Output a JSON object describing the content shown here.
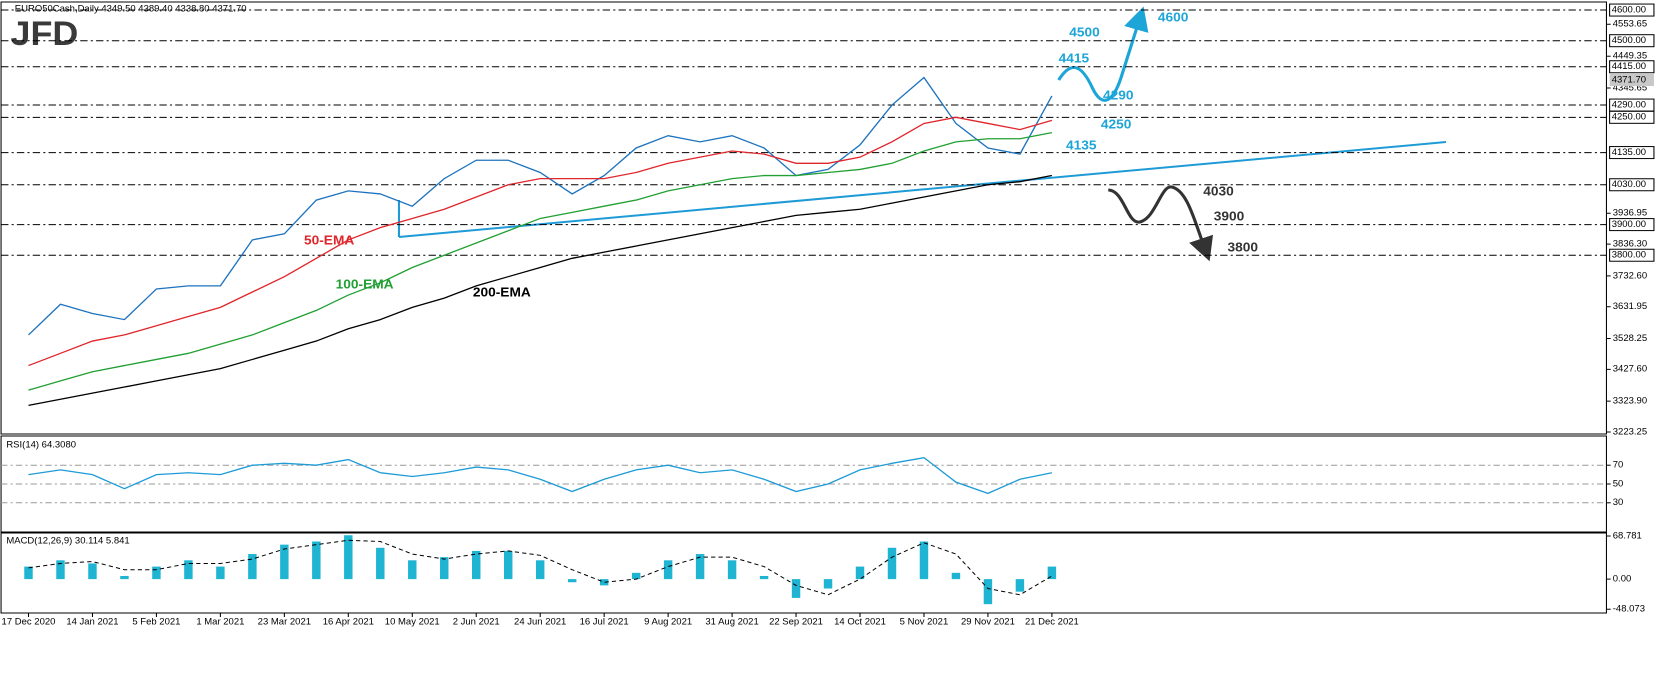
{
  "header": {
    "logo": "JFD"
  },
  "chart_data": [
    {
      "type": "line",
      "title": "EURO50Cash,Daily  4349.50 4389.40 4338.80 4371.70",
      "categories": [
        "17 Dec 2020",
        null,
        "14 Jan 2021",
        null,
        "5 Feb 2021",
        null,
        "1 Mar 2021",
        null,
        "23 Mar 2021",
        null,
        "16 Apr 2021",
        null,
        "10 May 2021",
        null,
        "2 Jun 2021",
        null,
        "24 Jun 2021",
        null,
        "16 Jul 2021",
        null,
        "9 Aug 2021",
        null,
        "31 Aug 2021",
        null,
        "22 Sep 2021",
        null,
        "14 Oct 2021",
        null,
        "5 Nov 2021",
        null,
        "29 Nov 2021",
        null,
        "21 Dec 2021"
      ],
      "series": [
        {
          "color": "#1e73be",
          "values": [
            3540,
            3640,
            3610,
            3590,
            3690,
            3700,
            3700,
            3850,
            3870,
            3980,
            4010,
            4000,
            3960,
            4050,
            4110,
            4110,
            4070,
            4000,
            4060,
            4150,
            4190,
            4170,
            4190,
            4150,
            4060,
            4080,
            4160,
            4290,
            4380,
            4230,
            4150,
            4130,
            4320
          ]
        },
        {
          "name": "50-EMA",
          "color": "#e0262b",
          "values": [
            3440,
            3480,
            3520,
            3540,
            3570,
            3600,
            3630,
            3680,
            3730,
            3790,
            3850,
            3890,
            3920,
            3950,
            3990,
            4030,
            4050,
            4050,
            4050,
            4070,
            4100,
            4120,
            4140,
            4130,
            4100,
            4100,
            4120,
            4170,
            4230,
            4250,
            4230,
            4210,
            4240
          ]
        },
        {
          "name": "100-EMA",
          "color": "#22a033",
          "values": [
            3360,
            3390,
            3420,
            3440,
            3460,
            3480,
            3510,
            3540,
            3580,
            3620,
            3670,
            3710,
            3760,
            3800,
            3840,
            3880,
            3920,
            3940,
            3960,
            3980,
            4010,
            4030,
            4050,
            4060,
            4060,
            4070,
            4080,
            4100,
            4140,
            4170,
            4180,
            4180,
            4200
          ]
        },
        {
          "name": "200-EMA",
          "color": "#000000",
          "values": [
            3310,
            3330,
            3350,
            3370,
            3390,
            3410,
            3430,
            3460,
            3490,
            3520,
            3560,
            3590,
            3630,
            3660,
            3700,
            3730,
            3760,
            3790,
            3810,
            3830,
            3850,
            3870,
            3890,
            3910,
            3930,
            3940,
            3950,
            3970,
            3990,
            4010,
            4030,
            4040,
            4060
          ]
        }
      ],
      "ylim": [
        3223.25,
        4623
      ],
      "yticks": [
        4553.65,
        4449.35,
        4345.65,
        3936.95,
        {
          "value": 3836.3,
          "label": "3836.30"
        },
        {
          "value": 3732.6,
          "label": "3732.60"
        },
        3631.95,
        3528.25,
        {
          "value": 3427.6,
          "label": "3427.60"
        },
        {
          "value": 3323.9,
          "label": "3323.90"
        },
        3223.25
      ],
      "levels": [
        {
          "value": 4600,
          "label": "4600.00"
        },
        {
          "value": 4500,
          "label": "4500.00"
        },
        {
          "value": 4415,
          "label": "4415.00"
        },
        {
          "value": 4290,
          "label": "4290.00"
        },
        {
          "value": 4250,
          "label": "4250.00"
        },
        {
          "value": 4135,
          "label": "4135.00"
        },
        {
          "value": 4030,
          "label": "4030.00"
        },
        {
          "value": 3900,
          "label": "3900.00"
        },
        {
          "value": 3800,
          "label": "3800.00"
        }
      ],
      "last_price": {
        "value": 4371.7,
        "label": "4371.70"
      },
      "annotations": [
        "4600",
        "4500",
        "4415",
        "4290",
        "4250",
        "4135",
        "4030",
        "3900",
        "3800"
      ]
    },
    {
      "type": "line",
      "title": "RSI(14) 64.3080",
      "series": [
        {
          "color": "#1e9bd7",
          "values": [
            60,
            65,
            60,
            45,
            60,
            62,
            60,
            70,
            72,
            70,
            76,
            62,
            58,
            62,
            68,
            65,
            55,
            42,
            55,
            65,
            70,
            62,
            65,
            55,
            42,
            50,
            65,
            72,
            78,
            52,
            40,
            55,
            62
          ]
        }
      ],
      "ylim": [
        0,
        100
      ],
      "yticks": [
        30,
        50,
        70
      ],
      "grid": true
    },
    {
      "type": "bar",
      "title": "MACD(12,26,9) 30.114 5.841",
      "series": [
        {
          "color": "#1eb4d2",
          "values": [
            20,
            30,
            25,
            5,
            20,
            30,
            20,
            40,
            55,
            60,
            70,
            50,
            30,
            35,
            45,
            45,
            30,
            -5,
            -10,
            10,
            30,
            40,
            30,
            5,
            -30,
            -15,
            20,
            50,
            60,
            10,
            -40,
            -20,
            20
          ]
        },
        {
          "color": "#000000",
          "style": "dashed",
          "values": [
            18,
            25,
            28,
            15,
            15,
            25,
            25,
            32,
            48,
            55,
            62,
            60,
            40,
            32,
            40,
            45,
            38,
            15,
            -5,
            0,
            20,
            35,
            35,
            20,
            -10,
            -25,
            0,
            35,
            58,
            40,
            -15,
            -25,
            5
          ]
        }
      ],
      "ylim": [
        -52.5,
        72
      ],
      "yticks": [
        68.781,
        {
          "value": 0,
          "label": "0.00"
        },
        -48.073
      ]
    }
  ]
}
